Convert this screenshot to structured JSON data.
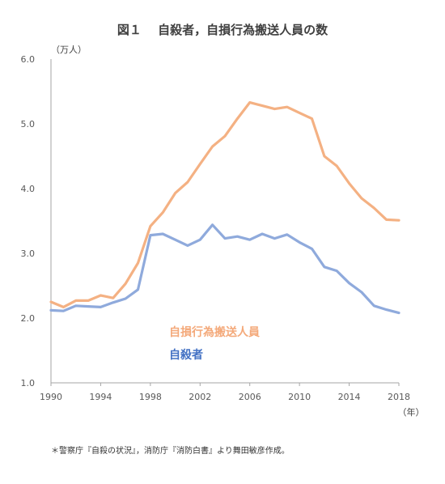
{
  "chart_data": {
    "type": "line",
    "title": "図１　 自殺者，自損行為搬送人員の数",
    "y_unit": "（万人）",
    "x_unit": "（年）",
    "ylim": [
      1.0,
      6.0
    ],
    "xlim": [
      1990,
      2018
    ],
    "y_ticks": [
      "1.0",
      "2.0",
      "3.0",
      "4.0",
      "5.0",
      "6.0"
    ],
    "x_ticks": [
      "1990",
      "1994",
      "1998",
      "2002",
      "2006",
      "2010",
      "2014",
      "2018"
    ],
    "grid": false,
    "x": [
      1990,
      1991,
      1992,
      1993,
      1994,
      1995,
      1996,
      1997,
      1998,
      1999,
      2000,
      2001,
      2002,
      2003,
      2004,
      2005,
      2006,
      2007,
      2008,
      2009,
      2010,
      2011,
      2012,
      2013,
      2014,
      2015,
      2016,
      2017,
      2018
    ],
    "series": [
      {
        "name": "自損行為搬送人員",
        "color": "#f4b183",
        "label_color": "#f4a97a",
        "values": [
          2.25,
          2.17,
          2.27,
          2.27,
          2.35,
          2.31,
          2.53,
          2.85,
          3.42,
          3.63,
          3.93,
          4.1,
          4.38,
          4.65,
          4.81,
          5.08,
          5.33,
          5.28,
          5.23,
          5.26,
          5.17,
          5.08,
          4.5,
          4.35,
          4.08,
          3.85,
          3.7,
          3.52,
          3.51
        ]
      },
      {
        "name": "自殺者",
        "color": "#8faadc",
        "label_color": "#4472c4",
        "values": [
          2.12,
          2.11,
          2.19,
          2.18,
          2.17,
          2.24,
          2.3,
          2.44,
          3.28,
          3.3,
          3.21,
          3.12,
          3.21,
          3.44,
          3.23,
          3.26,
          3.21,
          3.3,
          3.23,
          3.29,
          3.17,
          3.07,
          2.79,
          2.73,
          2.54,
          2.4,
          2.19,
          2.13,
          2.08
        ]
      }
    ],
    "source_note": "＊警察庁『自殺の状況』，消防庁『消防白書』より舞田敏彦作成。"
  }
}
